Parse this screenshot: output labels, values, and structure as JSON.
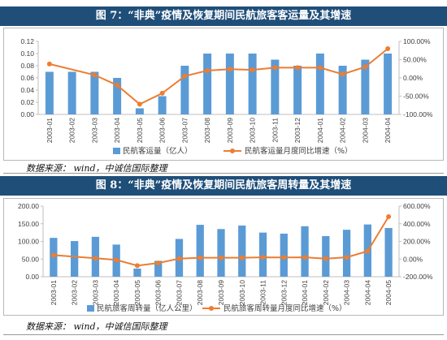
{
  "figure1": {
    "title": "图 7：“非典”疫情及恢复期间民航旅客客运量及其增速",
    "source": "数据来源： wind，中诚信国际整理"
  },
  "figure2": {
    "title": "图 8：“非典”疫情及恢复期间民航旅客周转量及其增速",
    "source": "数据来源： wind，中诚信国际整理"
  },
  "colors": {
    "bar": "#5b9bd5",
    "line": "#ed7d31",
    "axis": "#bfbfbf",
    "text": "#404040"
  },
  "chart_data": [
    {
      "type": "bar",
      "categories": [
        "2003-01",
        "2003-02",
        "2003-03",
        "2003-04",
        "2003-05",
        "2003-06",
        "2003-07",
        "2003-08",
        "2003-09",
        "2003-10",
        "2003-11",
        "2003-12",
        "2004-01",
        "2004-02",
        "2004-03",
        "2004-04"
      ],
      "series": [
        {
          "name": "民航客运量（亿人）",
          "type": "bar",
          "axis": "left",
          "values": [
            0.07,
            0.07,
            0.07,
            0.06,
            0.01,
            0.03,
            0.08,
            0.1,
            0.1,
            0.1,
            0.09,
            0.08,
            0.1,
            0.08,
            0.09,
            0.1
          ]
        },
        {
          "name": "民航客运量月度同比增速（%）",
          "type": "line",
          "axis": "right",
          "values": [
            38,
            null,
            8,
            -20,
            -72,
            -42,
            5,
            20,
            24,
            22,
            28,
            28,
            28,
            10,
            30,
            80
          ]
        }
      ],
      "left_axis": {
        "min": 0,
        "max": 0.12,
        "ticks": [
          "0.00",
          "0.02",
          "0.04",
          "0.06",
          "0.08",
          "0.10",
          "0.12"
        ]
      },
      "right_axis": {
        "min": -100,
        "max": 100,
        "ticks": [
          "-100.00%",
          "-50.00%",
          "0.00%",
          "50.00%",
          "100.00%"
        ]
      },
      "legend": "bottom"
    },
    {
      "type": "bar",
      "categories": [
        "2003-01",
        "2003-02",
        "2003-03",
        "2003-04",
        "2003-05",
        "2003-06",
        "2003-07",
        "2003-08",
        "2003-09",
        "2003-10",
        "2003-11",
        "2003-12",
        "2004-01",
        "2004-02",
        "2004-03",
        "2004-04",
        "2004-05"
      ],
      "series": [
        {
          "name": "民航旅客周转量（亿人公里）",
          "type": "bar",
          "axis": "left",
          "values": [
            110,
            101,
            113,
            91,
            23,
            45,
            107,
            147,
            135,
            145,
            125,
            122,
            143,
            115,
            133,
            148,
            138
          ]
        },
        {
          "name": "民航旅客周转量月度同比增速（%）",
          "type": "line",
          "axis": "right",
          "values": [
            45,
            null,
            10,
            -10,
            -75,
            -45,
            5,
            15,
            15,
            15,
            20,
            18,
            20,
            5,
            20,
            90,
            480
          ]
        }
      ],
      "left_axis": {
        "min": 0,
        "max": 200,
        "ticks": [
          "0.00",
          "50.00",
          "100.00",
          "150.00",
          "200.00"
        ]
      },
      "right_axis": {
        "min": -200,
        "max": 600,
        "ticks": [
          "-200.00%",
          "0.00%",
          "200.00%",
          "400.00%",
          "600.00%"
        ]
      },
      "legend": "bottom"
    }
  ]
}
